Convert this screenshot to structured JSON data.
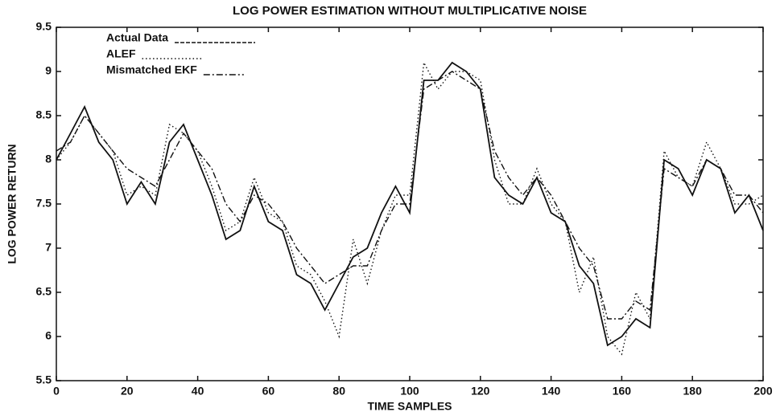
{
  "chart_data": {
    "type": "line",
    "title": "LOG POWER ESTIMATION WITHOUT MULTIPLICATIVE NOISE",
    "xlabel": "TIME SAMPLES",
    "ylabel": "LOG POWER RETURN",
    "x": [
      0,
      4,
      8,
      12,
      16,
      20,
      24,
      28,
      32,
      36,
      40,
      44,
      48,
      52,
      56,
      60,
      64,
      68,
      72,
      76,
      80,
      84,
      88,
      92,
      96,
      100,
      104,
      108,
      112,
      116,
      120,
      124,
      128,
      132,
      136,
      140,
      144,
      148,
      152,
      156,
      160,
      164,
      168,
      172,
      176,
      180,
      184,
      188,
      192,
      196,
      200
    ],
    "xlim": [
      0,
      200
    ],
    "xticks": [
      0,
      20,
      40,
      60,
      80,
      100,
      120,
      140,
      160,
      180,
      200
    ],
    "ylim": [
      5.5,
      9.5
    ],
    "yticks": [
      5.5,
      6,
      6.5,
      7,
      7.5,
      8,
      8.5,
      9,
      9.5
    ],
    "grid": false,
    "legend": "upper left",
    "series": [
      {
        "name": "Actual Data",
        "color": "#111111",
        "style": "solid",
        "values": [
          8.0,
          8.3,
          8.6,
          8.2,
          8.0,
          7.5,
          7.75,
          7.5,
          8.2,
          8.4,
          8.0,
          7.6,
          7.1,
          7.2,
          7.7,
          7.3,
          7.2,
          6.7,
          6.6,
          6.3,
          6.6,
          6.9,
          7.0,
          7.4,
          7.7,
          7.4,
          8.9,
          8.9,
          9.1,
          9.0,
          8.8,
          7.8,
          7.6,
          7.5,
          7.8,
          7.4,
          7.3,
          6.8,
          6.6,
          5.9,
          6.0,
          6.2,
          6.1,
          8.0,
          7.9,
          7.6,
          8.0,
          7.9,
          7.4,
          7.6,
          7.2
        ]
      },
      {
        "name": "ALEF",
        "color": "#111111",
        "style": "dotted",
        "values": [
          8.0,
          8.2,
          8.5,
          8.3,
          8.1,
          7.6,
          7.7,
          7.6,
          8.4,
          8.3,
          8.1,
          7.7,
          7.2,
          7.3,
          7.8,
          7.4,
          7.3,
          6.8,
          6.7,
          6.4,
          6.0,
          7.1,
          6.6,
          7.2,
          7.6,
          7.6,
          9.1,
          8.8,
          9.0,
          9.0,
          8.9,
          8.0,
          7.5,
          7.5,
          7.9,
          7.5,
          7.3,
          6.5,
          6.9,
          6.0,
          5.8,
          6.5,
          6.2,
          8.1,
          7.8,
          7.7,
          8.2,
          7.9,
          7.5,
          7.5,
          7.6
        ]
      },
      {
        "name": "Mismatched EKF",
        "color": "#111111",
        "style": "dashdot",
        "values": [
          8.1,
          8.2,
          8.5,
          8.3,
          8.1,
          7.9,
          7.8,
          7.7,
          8.0,
          8.3,
          8.1,
          7.9,
          7.5,
          7.3,
          7.6,
          7.5,
          7.3,
          7.0,
          6.8,
          6.6,
          6.7,
          6.8,
          6.8,
          7.2,
          7.5,
          7.5,
          8.8,
          8.9,
          9.0,
          8.9,
          8.8,
          8.1,
          7.8,
          7.6,
          7.8,
          7.6,
          7.3,
          7.0,
          6.8,
          6.2,
          6.2,
          6.4,
          6.3,
          7.9,
          7.8,
          7.7,
          8.0,
          7.9,
          7.6,
          7.6,
          7.4
        ]
      }
    ]
  }
}
